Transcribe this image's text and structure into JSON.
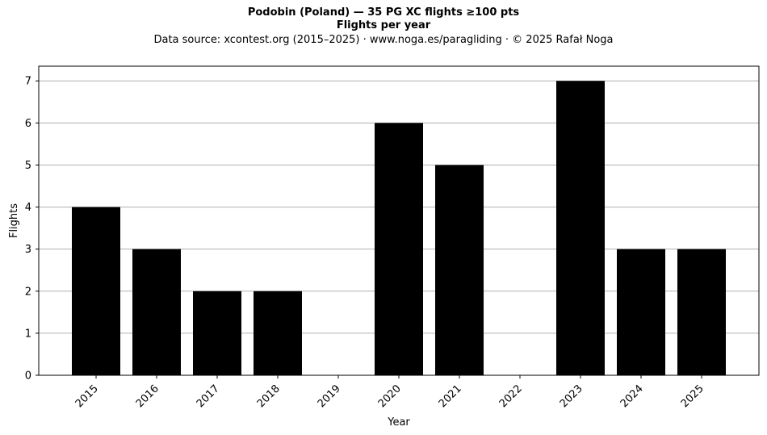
{
  "chart_data": {
    "type": "bar",
    "title": "Podobin (Poland)  —  35 PG XC flights ≥100 pts",
    "subtitle": "Flights per year",
    "source_line": "Data source: xcontest.org (2015–2025)  ·  www.noga.es/paragliding  ·  © 2025 Rafał Noga",
    "xlabel": "Year",
    "ylabel": "Flights",
    "categories": [
      "2015",
      "2016",
      "2017",
      "2018",
      "2019",
      "2020",
      "2021",
      "2022",
      "2023",
      "2024",
      "2025"
    ],
    "values": [
      4,
      3,
      2,
      2,
      0,
      6,
      5,
      0,
      7,
      3,
      3
    ],
    "ylim": [
      0,
      7.35
    ],
    "yticks": [
      0,
      1,
      2,
      3,
      4,
      5,
      6,
      7
    ],
    "grid": "horizontal",
    "bar_color": "#000000",
    "grid_color": "#b0b0b0"
  }
}
